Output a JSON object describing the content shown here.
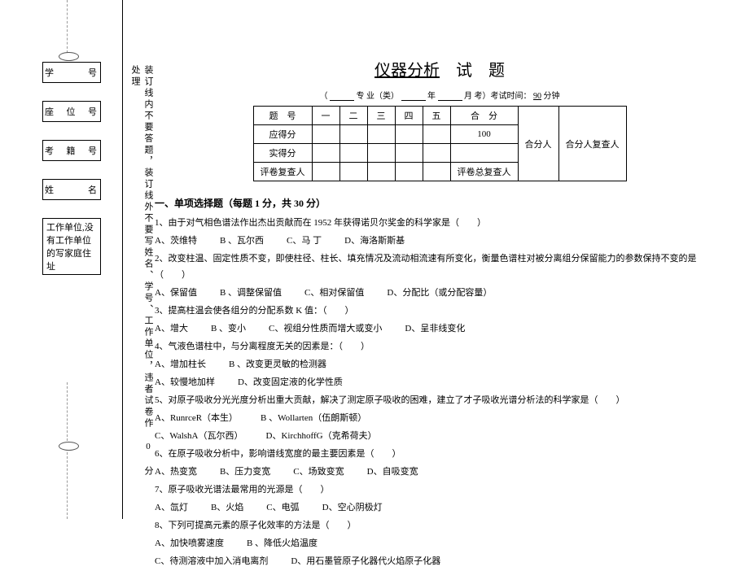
{
  "left_labels": {
    "student_no": "学　号",
    "seat_no": "座 位 号",
    "exam_no": "考 籍 号",
    "name": "姓　名",
    "work_unit": "工作单位,没有工作单位的写家庭住址"
  },
  "binding_text": "装订线内不要答题，装订线外不要写姓名、学号、工作单位，违者试卷作 0 分处理",
  "title_underline": "仪器分析",
  "title_rest": "　试　题",
  "exam_info": {
    "prefix": "（",
    "major": "专 业（类）",
    "year_sep": "年",
    "month_sep": "月",
    "exam": "考）考试时间：",
    "duration": "90",
    "minutes": "分钟"
  },
  "score_table": {
    "headers": [
      "题　号",
      "一",
      "二",
      "三",
      "四",
      "五",
      "合　分",
      "合分人",
      "合分人复查人"
    ],
    "rows": [
      {
        "label": "应得分",
        "cells": [
          "",
          "",
          "",
          "",
          "",
          "100"
        ]
      },
      {
        "label": "实得分",
        "cells": [
          "",
          "",
          "",
          "",
          "",
          ""
        ]
      },
      {
        "label": "评卷复查人",
        "cells": [
          "",
          "",
          "",
          "",
          ""
        ],
        "right": "评卷总复查人"
      }
    ]
  },
  "section1_title": "一、单项选择题（每题 1 分，共 30 分）",
  "questions": [
    {
      "q": "1、由于对气相色谱法作出杰出贡献而在 1952 年获得诺贝尔奖金的科学家是（　　）",
      "opts": [
        "A、茨维特",
        "B 、瓦尔西",
        "C、马 丁",
        "D、海洛斯斯基"
      ]
    },
    {
      "q": "2、改变柱温、固定性质不变，即使柱径、柱长、填充情况及流动相流速有所变化，衡量色谱柱对被分离组分保留能力的参数保持不变的是（　　）",
      "opts": [
        "A、保留值",
        "B 、调整保留值",
        "C、相对保留值",
        "D、分配比（或分配容量）"
      ]
    },
    {
      "q": "3、提高柱温会使各组分的分配系数 K 值：（　　）",
      "opts": [
        "A、增大",
        "B 、变小",
        "C、视组分性质而增大或变小",
        "D、呈非线变化"
      ]
    },
    {
      "q": "4、气液色谱柱中，与分离程度无关的因素是：（　　）",
      "opts": [
        "A、增加柱长",
        "B 、改变更灵敏的检测器"
      ],
      "opts2": [
        "A、较慢地加样",
        "D、改变固定液的化学性质"
      ]
    },
    {
      "q": "5、对原子吸收分光光度分析出重大贡献，解决了测定原子吸收的困难，建立了才子吸收光谱分析法的科学家是（　　）",
      "opts": [
        "A、RunrceR（本生）",
        "B 、Wollarten（伍朗斯顿）"
      ],
      "opts2": [
        "C、WalshA（瓦尔西）",
        "D、KirchhoffG（克希荷夫）"
      ]
    },
    {
      "q": "6、在原子吸收分析中，影响谱线宽度的最主要因素是（　　）",
      "opts": [
        "A、热变宽",
        "B、压力变宽",
        "C、场致变宽",
        "D、自吸变宽"
      ]
    },
    {
      "q": "7、原子吸收光谱法最常用的光源是（　　）",
      "opts": [
        "A、氙灯",
        "B、火焰",
        "C、电弧",
        "D、空心阴极灯"
      ]
    },
    {
      "q": "8、下列可提高元素的原子化效率的方法是（　　）",
      "opts": [
        "A、加快喷雾速度",
        "B 、降低火焰温度"
      ],
      "opts2": [
        "C、待测溶液中加入消电离剂",
        "D、用石墨管原子化器代火焰原子化器"
      ]
    }
  ]
}
